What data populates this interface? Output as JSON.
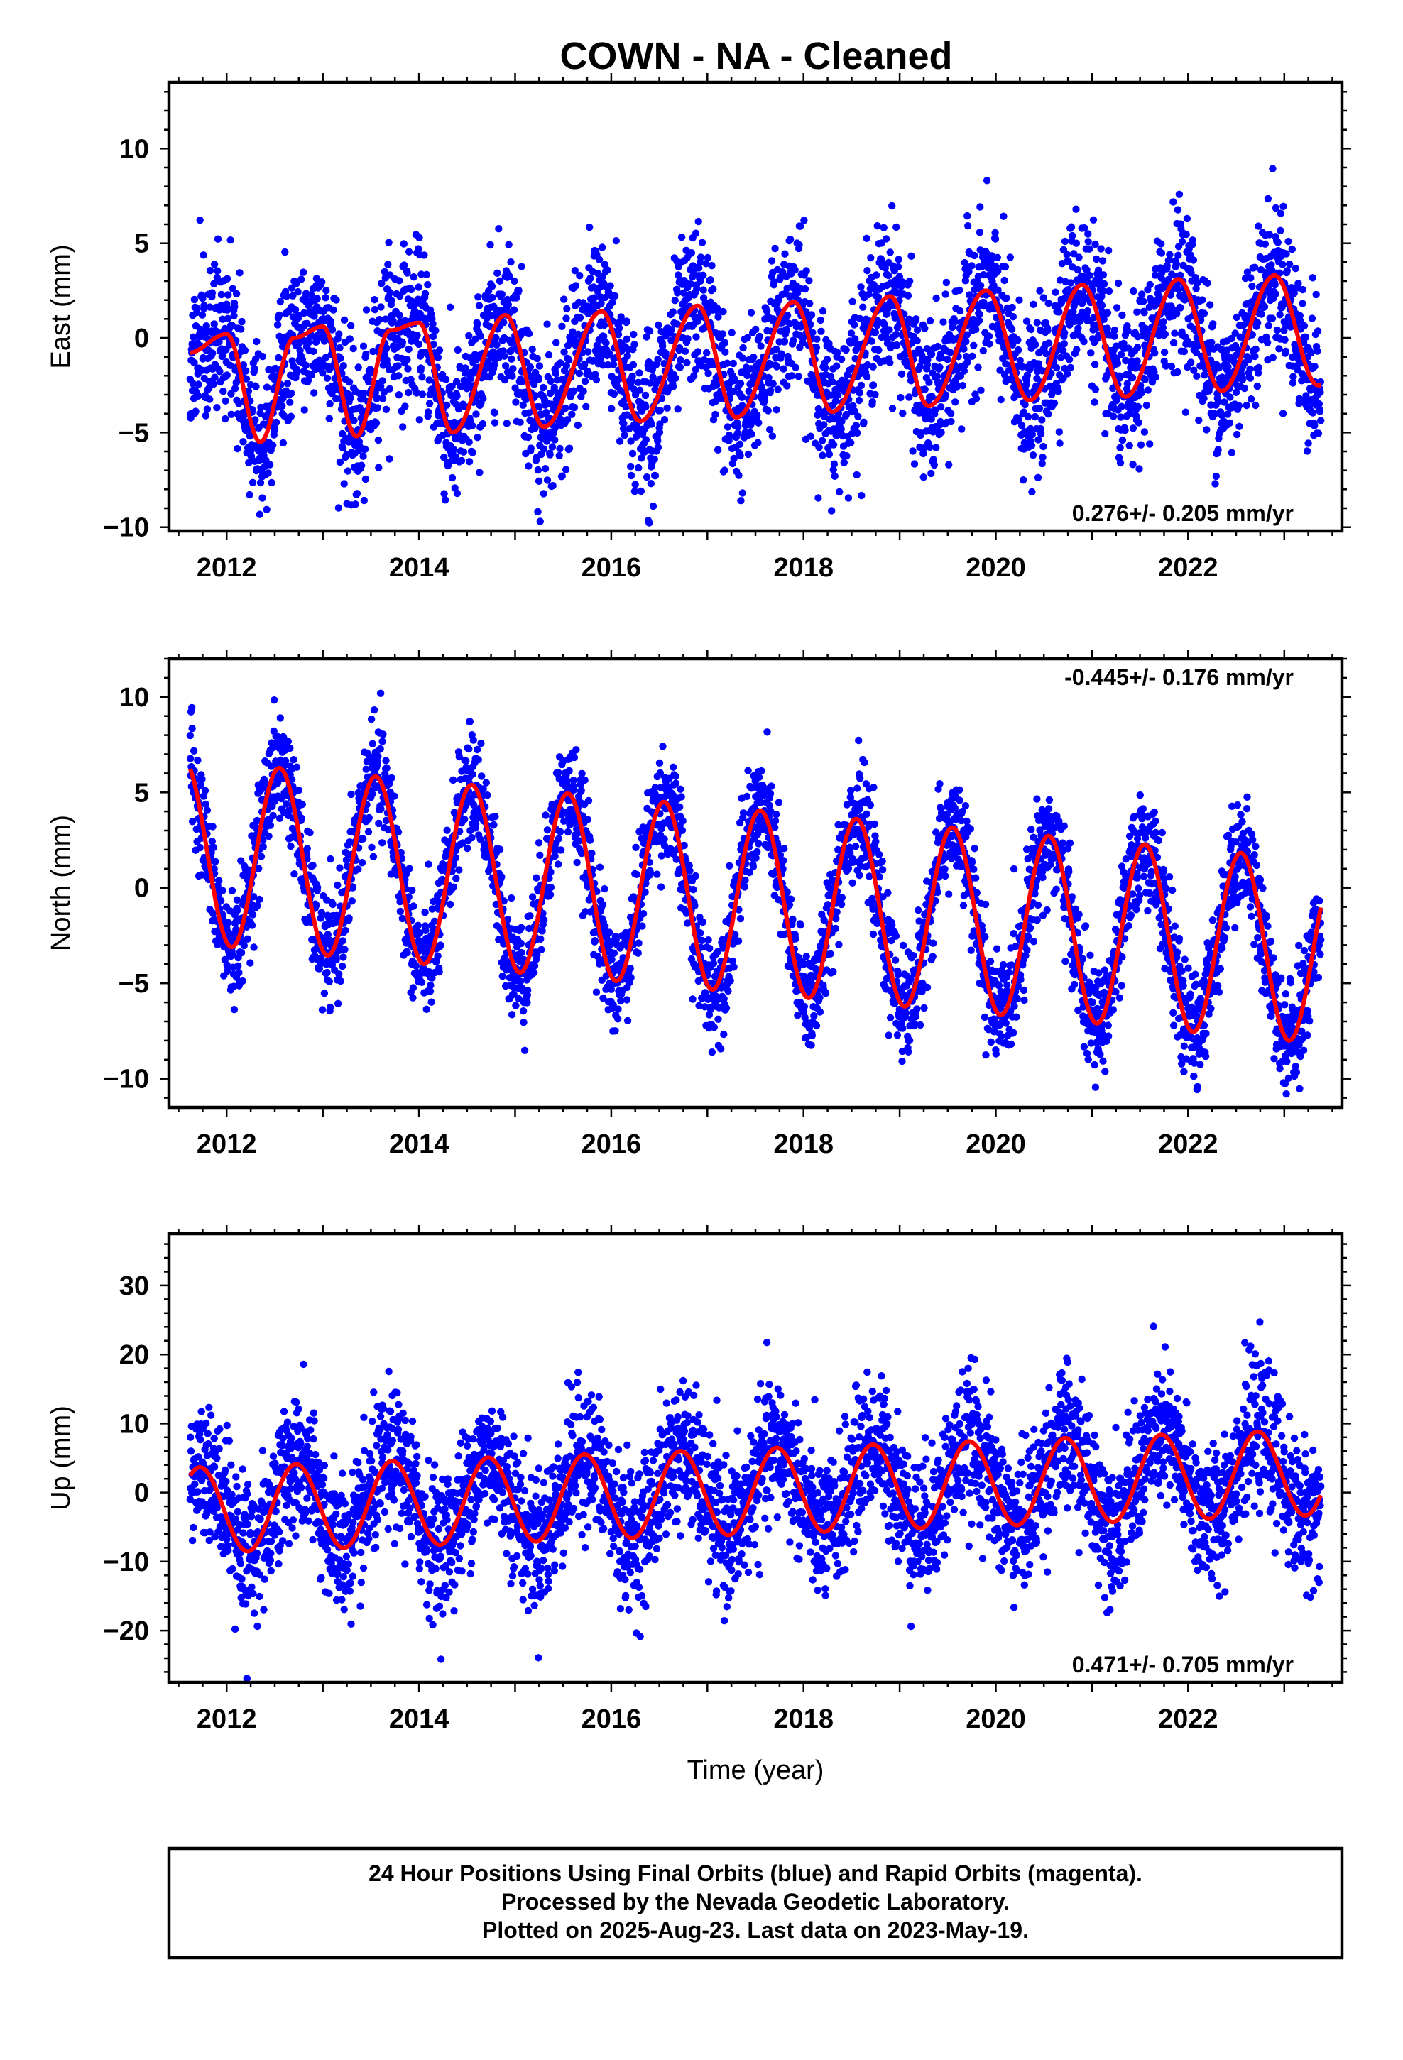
{
  "title": "COWN  - NA - Cleaned",
  "colors": {
    "points": "#0000ff",
    "model": "#ff0000",
    "axes": "#000000"
  },
  "footer": {
    "line1": "24 Hour Positions Using Final Orbits (blue) and Rapid Orbits (magenta).",
    "line2": "Processed by the Nevada Geodetic Laboratory.",
    "line3": "Plotted on 2025-Aug-23. Last data on 2023-May-19."
  },
  "chart_data": [
    {
      "type": "scatter",
      "panel": "east",
      "ylabel": "East (mm)",
      "xlabel": "",
      "xlim": [
        2011.4,
        2023.6
      ],
      "ylim": [
        -10.2,
        13.5
      ],
      "xticks": [
        2012,
        2014,
        2016,
        2018,
        2020,
        2022
      ],
      "yticks": [
        -10,
        -5,
        0,
        5,
        10
      ],
      "rate_text": "0.276+/- 0.205 mm/yr",
      "rate_position": "bottom-right",
      "series": [
        {
          "kind": "points",
          "data_start": 2011.62,
          "data_end": 2023.38,
          "scatter_std_mm": 2.0
        },
        {
          "kind": "model",
          "x": [
            2011.6,
            2012.0,
            2012.35,
            2012.7,
            2013.0,
            2013.35,
            2013.7,
            2014.0,
            2014.35,
            2014.9,
            2015.3,
            2015.9,
            2016.3,
            2016.9,
            2017.3,
            2017.9,
            2018.3,
            2018.9,
            2019.3,
            2019.9,
            2020.35,
            2020.9,
            2021.35,
            2021.9,
            2022.35,
            2022.9,
            2023.35
          ],
          "y": [
            -0.8,
            0.2,
            -5.5,
            0.0,
            0.6,
            -5.2,
            0.4,
            0.8,
            -5.0,
            1.2,
            -4.7,
            1.4,
            -4.4,
            1.7,
            -4.2,
            1.9,
            -3.9,
            2.2,
            -3.6,
            2.5,
            -3.3,
            2.8,
            -3.1,
            3.1,
            -2.8,
            3.3,
            -2.5
          ]
        }
      ]
    },
    {
      "type": "scatter",
      "panel": "north",
      "ylabel": "North (mm)",
      "xlabel": "",
      "xlim": [
        2011.4,
        2023.6
      ],
      "ylim": [
        -11.5,
        12.0
      ],
      "xticks": [
        2012,
        2014,
        2016,
        2018,
        2020,
        2022
      ],
      "yticks": [
        -10,
        -5,
        0,
        5,
        10
      ],
      "rate_text": "-0.445+/- 0.176 mm/yr",
      "rate_position": "top-right",
      "series": [
        {
          "kind": "points",
          "data_start": 2011.62,
          "data_end": 2023.38,
          "scatter_std_mm": 1.4
        },
        {
          "kind": "model",
          "formula": "annual sinusoid",
          "offset_mm": 1.9,
          "trend_mm_per_yr": -0.445,
          "reference_year": 2011.6,
          "amplitude_mm": 4.8,
          "peak_phase_yr": 0.55
        }
      ]
    },
    {
      "type": "scatter",
      "panel": "up",
      "ylabel": "Up (mm)",
      "xlabel": "Time (year)",
      "xlim": [
        2011.4,
        2023.6
      ],
      "ylim": [
        -27.5,
        37.5
      ],
      "xticks": [
        2012,
        2014,
        2016,
        2018,
        2020,
        2022
      ],
      "yticks": [
        -20,
        -10,
        0,
        10,
        20,
        30
      ],
      "rate_text": "0.471+/- 0.705 mm/yr",
      "rate_position": "bottom-right",
      "series": [
        {
          "kind": "points",
          "data_start": 2011.62,
          "data_end": 2023.38,
          "scatter_std_mm": 5.0
        },
        {
          "kind": "model",
          "formula": "annual sinusoid",
          "offset_mm": -2.6,
          "trend_mm_per_yr": 0.471,
          "reference_year": 2011.6,
          "amplitude_mm": 6.2,
          "peak_phase_yr": 0.72
        }
      ]
    }
  ]
}
